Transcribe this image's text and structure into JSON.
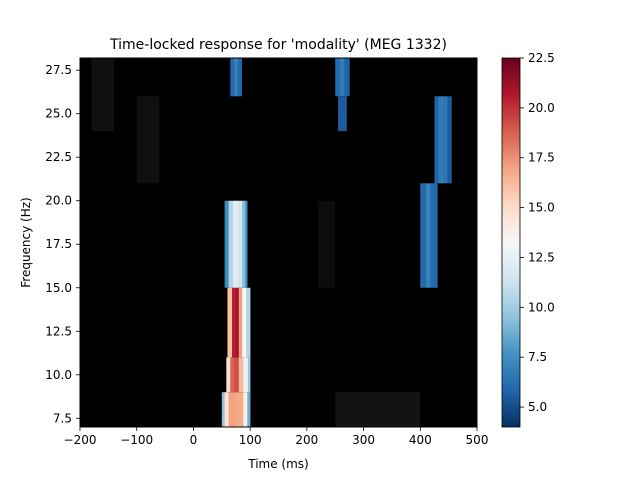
{
  "chart_data": {
    "type": "heatmap",
    "title": "Time-locked response for 'modality' (MEG 1332)",
    "xlabel": "Time (ms)",
    "ylabel": "Frequency (Hz)",
    "xlim": [
      -200,
      500
    ],
    "ylim": [
      7,
      28.2
    ],
    "xticks": [
      -200,
      -100,
      0,
      100,
      200,
      300,
      400,
      500
    ],
    "xtick_labels": [
      "−200",
      "−100",
      "0",
      "100",
      "200",
      "300",
      "400",
      "500"
    ],
    "yticks": [
      7.5,
      10.0,
      12.5,
      15.0,
      17.5,
      20.0,
      22.5,
      25.0,
      27.5
    ],
    "ytick_labels": [
      "7.5",
      "10.0",
      "12.5",
      "15.0",
      "17.5",
      "20.0",
      "22.5",
      "25.0",
      "27.5"
    ],
    "colorbar": {
      "colormap": "RdBu_r with black background",
      "vmin": 4.0,
      "vmax": 22.5,
      "ticks": [
        5.0,
        7.5,
        10.0,
        12.5,
        15.0,
        17.5,
        20.0,
        22.5
      ],
      "tick_labels": [
        "5.0",
        "7.5",
        "10.0",
        "12.5",
        "15.0",
        "17.5",
        "20.0",
        "22.5"
      ],
      "stops": [
        "#053061",
        "#2166ac",
        "#4393c3",
        "#92c5de",
        "#d1e5f0",
        "#f7f7f7",
        "#fddbc7",
        "#f4a582",
        "#d6604d",
        "#b2182b",
        "#67001f"
      ]
    },
    "frequency_bands": [
      7.5,
      10.0,
      12.5,
      15.0,
      17.5,
      20.0,
      22.5,
      25.0,
      27.5
    ],
    "background_value": 0,
    "significant_clusters": [
      {
        "f_low": 7.0,
        "f_high": 9.0,
        "t_start": 50,
        "t_end": 100,
        "profile": [
          [
            50,
            6.5
          ],
          [
            55,
            12.5
          ],
          [
            62,
            16.5
          ],
          [
            75,
            17.5
          ],
          [
            88,
            16.0
          ],
          [
            95,
            11.5
          ],
          [
            100,
            6.0
          ]
        ]
      },
      {
        "f_low": 9.0,
        "f_high": 11.0,
        "t_start": 58,
        "t_end": 100,
        "profile": [
          [
            58,
            12.0
          ],
          [
            65,
            17.5
          ],
          [
            72,
            20.0
          ],
          [
            80,
            18.5
          ],
          [
            88,
            14.0
          ],
          [
            96,
            11.5
          ],
          [
            100,
            8.0
          ]
        ]
      },
      {
        "f_low": 11.0,
        "f_high": 15.0,
        "t_start": 60,
        "t_end": 100,
        "profile": [
          [
            60,
            13.0
          ],
          [
            68,
            19.0
          ],
          [
            74,
            22.0
          ],
          [
            80,
            20.0
          ],
          [
            86,
            14.5
          ],
          [
            93,
            12.0
          ],
          [
            100,
            9.0
          ]
        ]
      },
      {
        "f_low": 15.0,
        "f_high": 20.0,
        "t_start": 55,
        "t_end": 95,
        "profile": [
          [
            55,
            6.0
          ],
          [
            62,
            9.0
          ],
          [
            70,
            12.0
          ],
          [
            78,
            12.5
          ],
          [
            86,
            10.5
          ],
          [
            92,
            8.0
          ],
          [
            95,
            6.0
          ]
        ]
      },
      {
        "f_low": 26.0,
        "f_high": 28.2,
        "t_start": 65,
        "t_end": 85,
        "profile": [
          [
            65,
            5.0
          ],
          [
            72,
            7.0
          ],
          [
            78,
            7.0
          ],
          [
            85,
            5.0
          ]
        ]
      },
      {
        "f_low": 26.0,
        "f_high": 28.2,
        "t_start": 250,
        "t_end": 275,
        "profile": [
          [
            250,
            5.0
          ],
          [
            258,
            7.0
          ],
          [
            266,
            6.5
          ],
          [
            275,
            5.0
          ]
        ]
      },
      {
        "f_low": 24.0,
        "f_high": 26.0,
        "t_start": 255,
        "t_end": 270,
        "profile": [
          [
            255,
            5.0
          ],
          [
            262,
            6.0
          ],
          [
            270,
            5.0
          ]
        ]
      },
      {
        "f_low": 21.0,
        "f_high": 26.0,
        "t_start": 425,
        "t_end": 455,
        "profile": [
          [
            425,
            5.0
          ],
          [
            432,
            6.5
          ],
          [
            440,
            7.0
          ],
          [
            448,
            6.0
          ],
          [
            455,
            5.0
          ]
        ]
      },
      {
        "f_low": 15.0,
        "f_high": 21.0,
        "t_start": 400,
        "t_end": 430,
        "profile": [
          [
            400,
            5.0
          ],
          [
            410,
            7.0
          ],
          [
            418,
            7.0
          ],
          [
            430,
            5.0
          ]
        ]
      }
    ],
    "faint_patches": [
      {
        "f_low": 7.0,
        "f_high": 9.0,
        "t_start": 250,
        "t_end": 400,
        "level": 0.12
      },
      {
        "f_low": 21.0,
        "f_high": 26.0,
        "t_start": -100,
        "t_end": -60,
        "level": 0.1
      },
      {
        "f_low": 24.0,
        "f_high": 28.2,
        "t_start": -180,
        "t_end": -140,
        "level": 0.1
      },
      {
        "f_low": 15.0,
        "f_high": 20.0,
        "t_start": 220,
        "t_end": 250,
        "level": 0.08
      }
    ]
  }
}
